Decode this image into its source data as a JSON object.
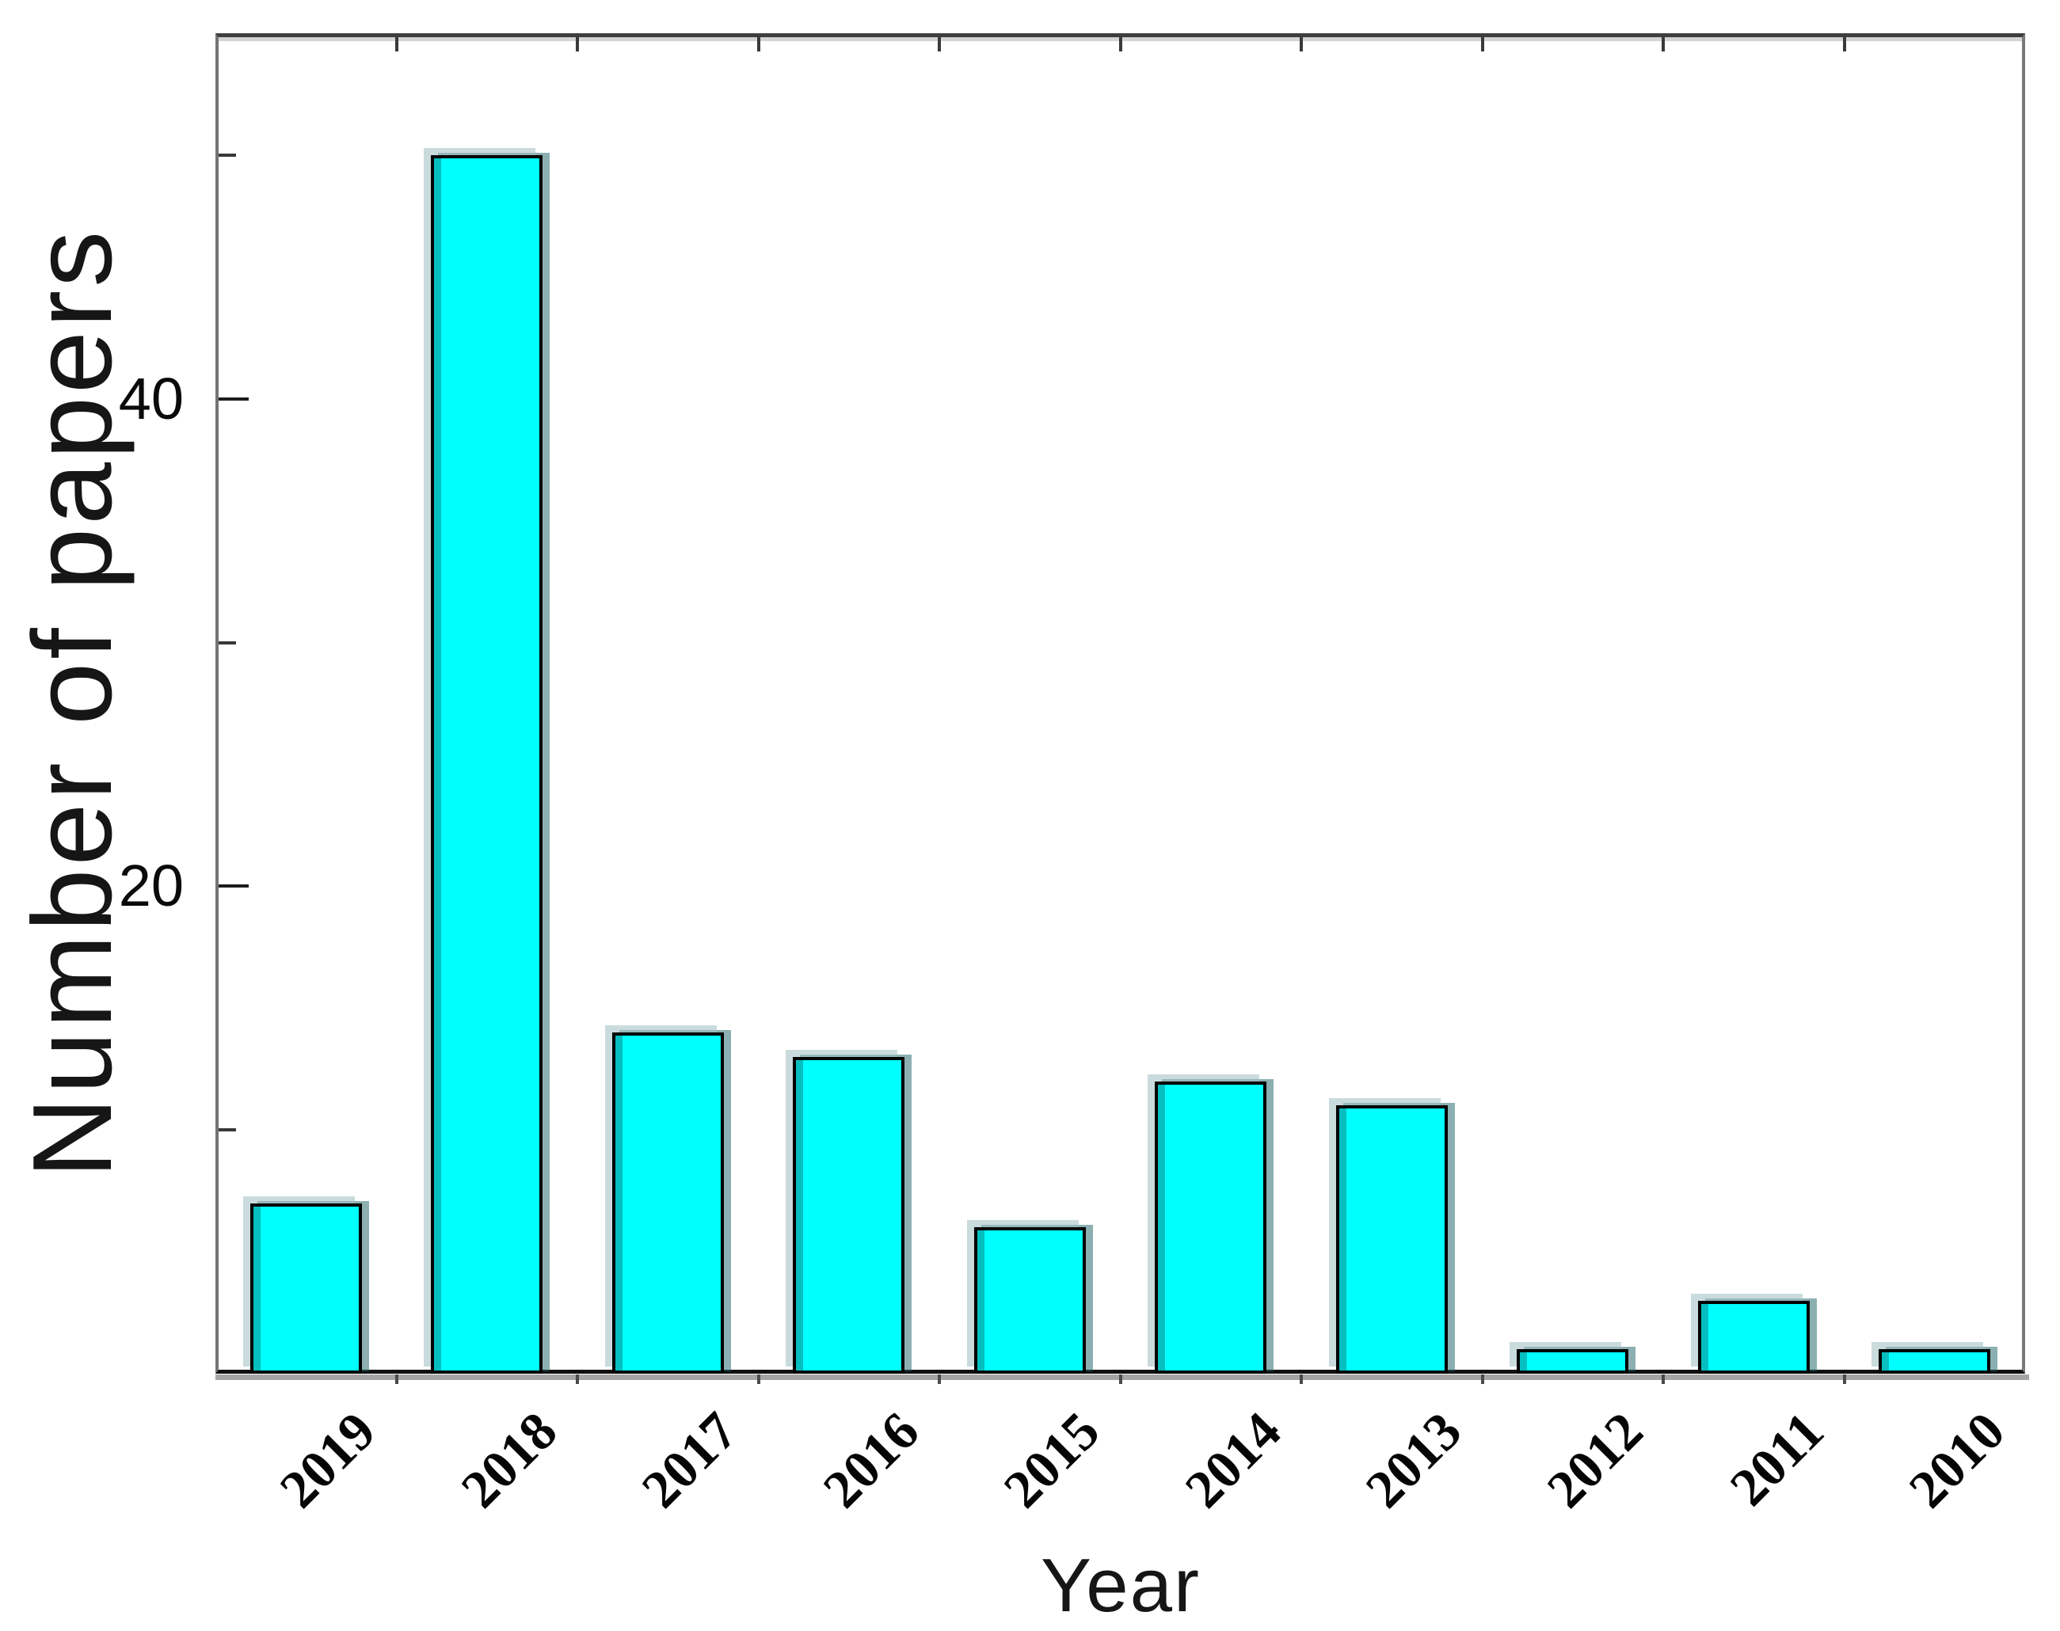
{
  "chart_data": {
    "type": "bar",
    "title": "",
    "categories": [
      "2019",
      "2018",
      "2017",
      "2016",
      "2015",
      "2014",
      "2013",
      "2012",
      "2011",
      "2010"
    ],
    "values": [
      7,
      50,
      14,
      13,
      6,
      12,
      11,
      1,
      3,
      1
    ],
    "xlabel": "Year",
    "ylabel": "Number of papers",
    "ylim": [
      0,
      55
    ],
    "yticks_labeled": [
      20,
      40
    ],
    "yticks_minor": [
      10,
      30,
      50
    ],
    "grid": false,
    "legend": null,
    "bar_color": "#00ffff",
    "bar_edge_color": "#000000",
    "bar_shadow_color": "#1a5f64"
  }
}
